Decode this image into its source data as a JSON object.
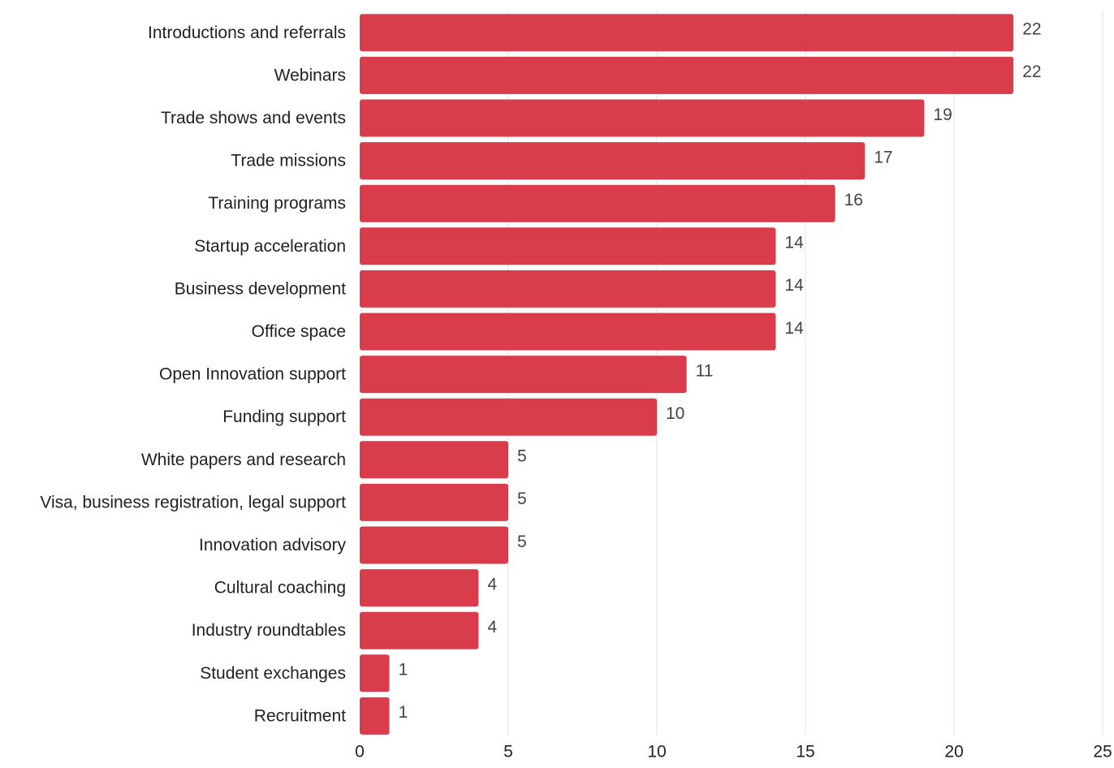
{
  "chart_data": {
    "type": "bar",
    "orientation": "horizontal",
    "categories": [
      "Introductions and referrals",
      "Webinars",
      "Trade shows and events",
      "Trade missions",
      "Training programs",
      "Startup acceleration",
      "Business development",
      "Office space",
      "Open Innovation support",
      "Funding support",
      "White papers and research",
      "Visa, business registration, legal support",
      "Innovation advisory",
      "Cultural coaching",
      "Industry roundtables",
      "Student exchanges",
      "Recruitment"
    ],
    "values": [
      22,
      22,
      19,
      17,
      16,
      14,
      14,
      14,
      11,
      10,
      5,
      5,
      5,
      4,
      4,
      1,
      1
    ],
    "x_ticks": [
      0,
      5,
      10,
      15,
      20,
      25
    ],
    "xlim": [
      0,
      25
    ],
    "title": "",
    "xlabel": "",
    "ylabel": "",
    "grid": "vertical",
    "legend": "none",
    "bar_color": "#d93d4b",
    "grid_color": "#e0e0e0",
    "label_color": "#222222",
    "value_label_color": "#444444"
  }
}
